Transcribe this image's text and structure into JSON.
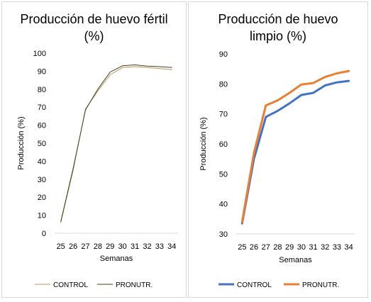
{
  "chart_data": [
    {
      "type": "line",
      "title": "Producción de huevo fértil (%)",
      "title_lines": [
        "Producción de huevo fértil",
        "(%)"
      ],
      "xlabel": "Semanas",
      "ylabel": "Producción (%)",
      "categories": [
        "25",
        "26",
        "27",
        "28",
        "29",
        "30",
        "31",
        "32",
        "33",
        "34"
      ],
      "ylim": [
        0,
        100
      ],
      "yticks": [
        0,
        10,
        20,
        30,
        40,
        50,
        60,
        70,
        80,
        90,
        100
      ],
      "grid": false,
      "legend_position": "bottom",
      "series": [
        {
          "name": "CONTROL",
          "color": "#c09159",
          "width": 1,
          "values": [
            6,
            35,
            69,
            79,
            88,
            92,
            92.5,
            92,
            91.5,
            90.8
          ]
        },
        {
          "name": "PRONUTR.",
          "color": "#37471f",
          "width": 1,
          "values": [
            6.5,
            36,
            68.5,
            80,
            89.5,
            93,
            93.5,
            92.8,
            92.5,
            92
          ]
        }
      ]
    },
    {
      "type": "line",
      "title": "Producción de huevo limpio (%)",
      "title_lines": [
        "Producción de huevo",
        "limpio (%)"
      ],
      "xlabel": "Semanas",
      "ylabel": "Producción (%)",
      "categories": [
        "25",
        "26",
        "27",
        "28",
        "29",
        "30",
        "31",
        "32",
        "33",
        "34"
      ],
      "ylim": [
        30,
        90
      ],
      "yticks": [
        30,
        40,
        50,
        60,
        70,
        80,
        90
      ],
      "grid": false,
      "legend_position": "bottom",
      "series": [
        {
          "name": "CONTROL",
          "color": "#4472c4",
          "width": 3,
          "values": [
            33.5,
            55,
            69,
            71,
            73.5,
            76.3,
            77,
            79.5,
            80.5,
            81
          ]
        },
        {
          "name": "PRONUTR.",
          "color": "#ed7d31",
          "width": 3,
          "values": [
            34,
            57,
            72.8,
            74.5,
            77,
            79.8,
            80.3,
            82.3,
            83.5,
            84.3
          ]
        }
      ]
    }
  ]
}
